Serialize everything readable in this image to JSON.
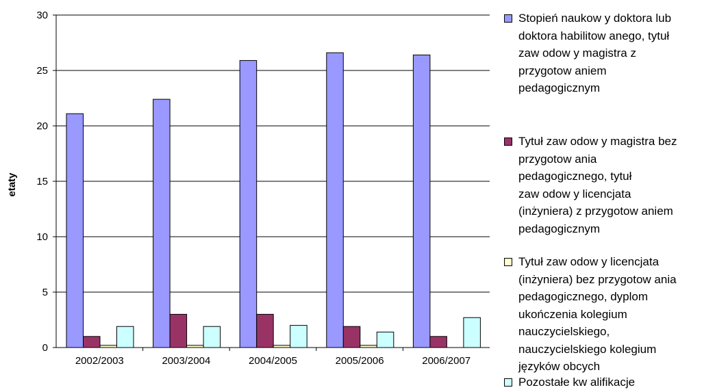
{
  "chart_data": {
    "type": "bar",
    "ylabel": "etaty",
    "ylim": [
      0,
      30
    ],
    "yticks": [
      0,
      5,
      10,
      15,
      20,
      25,
      30
    ],
    "grid": true,
    "legend_position": "right",
    "categories": [
      "2002/2003",
      "2003/2004",
      "2004/2005",
      "2005/2006",
      "2006/2007"
    ],
    "series": [
      {
        "name": "Stopień naukow y doktora lub\ndoktora habilitow anego, tytuł\nzaw odow y magistra z\nprzygotow aniem\npedagogicznym",
        "color": "#9999ff",
        "values": [
          21.1,
          22.4,
          25.9,
          26.6,
          26.4
        ]
      },
      {
        "name": "Tytuł zaw odow y magistra bez\nprzygotow ania\npedagogicznego, tytuł\nzaw odow y licencjata\n(inżyniera) z przygotow aniem\npedagogicznym",
        "color": "#993366",
        "values": [
          1.0,
          3.0,
          3.0,
          1.9,
          1.0
        ]
      },
      {
        "name": "Tytuł zaw odow y licencjata\n(inżyniera) bez przygotow ania\npedagogicznego, dyplom\nukończenia kolegium\nnauczycielskiego,\nnauczycielskiego kolegium\njęzyków obcych",
        "color": "#ffffcc",
        "values": [
          0.2,
          0.2,
          0.2,
          0.2,
          0
        ]
      },
      {
        "name": "Pozostałe kw alifikacje",
        "color": "#ccffff",
        "values": [
          1.9,
          1.9,
          2.0,
          1.4,
          2.7
        ]
      }
    ]
  }
}
